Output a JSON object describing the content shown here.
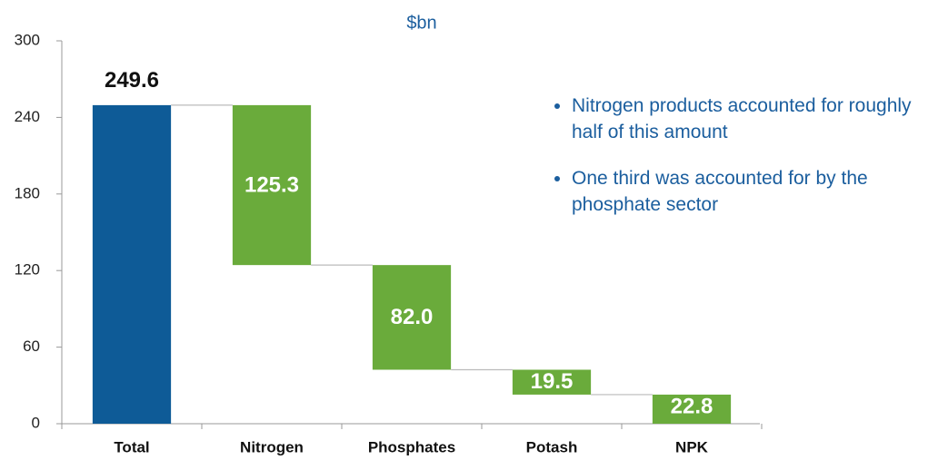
{
  "chart_data": {
    "type": "waterfall",
    "title": "$bn",
    "categories": [
      "Total",
      "Nitrogen",
      "Phosphates",
      "Potash",
      "NPK"
    ],
    "values": [
      249.6,
      125.3,
      82,
      19.5,
      22.8
    ],
    "value_labels": [
      "249.6",
      "125.3",
      "82.0",
      "19.5",
      "22.8"
    ],
    "colors": [
      "#0e5b97",
      "#6aab3b",
      "#6aab3b",
      "#6aab3b",
      "#6aab3b"
    ],
    "ylim": [
      0,
      300
    ],
    "yticks": [
      0,
      60,
      120,
      180,
      240,
      300
    ],
    "annotations": [
      "Nitrogen products accounted for roughly half of this amount",
      "One third was accounted for by the phosphate sector"
    ]
  }
}
